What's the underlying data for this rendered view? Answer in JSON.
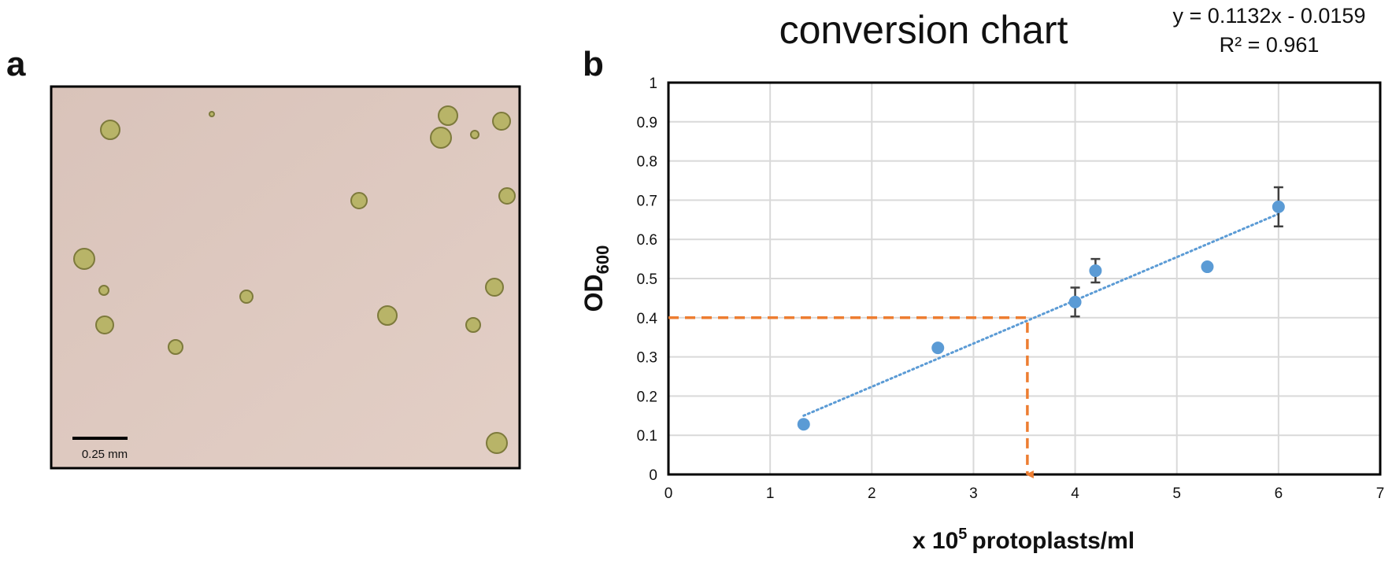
{
  "panel_labels": [
    "a",
    "b"
  ],
  "panel_a": {
    "scale_bar": "0.25 mm"
  },
  "chart_data": {
    "type": "scatter",
    "title": "conversion chart",
    "equation": "y = 0.1132x - 0.0159",
    "r_squared": "R² = 0.961",
    "y_label": {
      "text": "OD",
      "sub": "600"
    },
    "x_label": {
      "text": "x 10",
      "sup": "5",
      "rest": "protoplasts/ml"
    },
    "xlim": [
      0,
      7
    ],
    "ylim": [
      0,
      1
    ],
    "xticks": [
      0,
      1,
      2,
      3,
      4,
      5,
      6,
      7
    ],
    "yticks": [
      0,
      0.1,
      0.2,
      0.3,
      0.4,
      0.5,
      0.6,
      0.7,
      0.8,
      0.9,
      1
    ],
    "grid": true,
    "points": {
      "color": "#5b9bd5",
      "x": [
        1.33,
        2.65,
        4.0,
        4.2,
        5.3,
        6.0
      ],
      "values": [
        0.128,
        0.323,
        0.44,
        0.52,
        0.53,
        0.683
      ],
      "errors": [
        null,
        null,
        0.037,
        0.03,
        null,
        0.05
      ]
    },
    "trendline": {
      "color": "#5b9bd5",
      "x": [
        1.33,
        6.0
      ],
      "values": [
        0.15,
        0.665
      ]
    },
    "guide": {
      "color": "#ed7d31",
      "x": [
        0,
        3.53,
        3.53
      ],
      "values": [
        0.4,
        0.4,
        0
      ]
    }
  }
}
